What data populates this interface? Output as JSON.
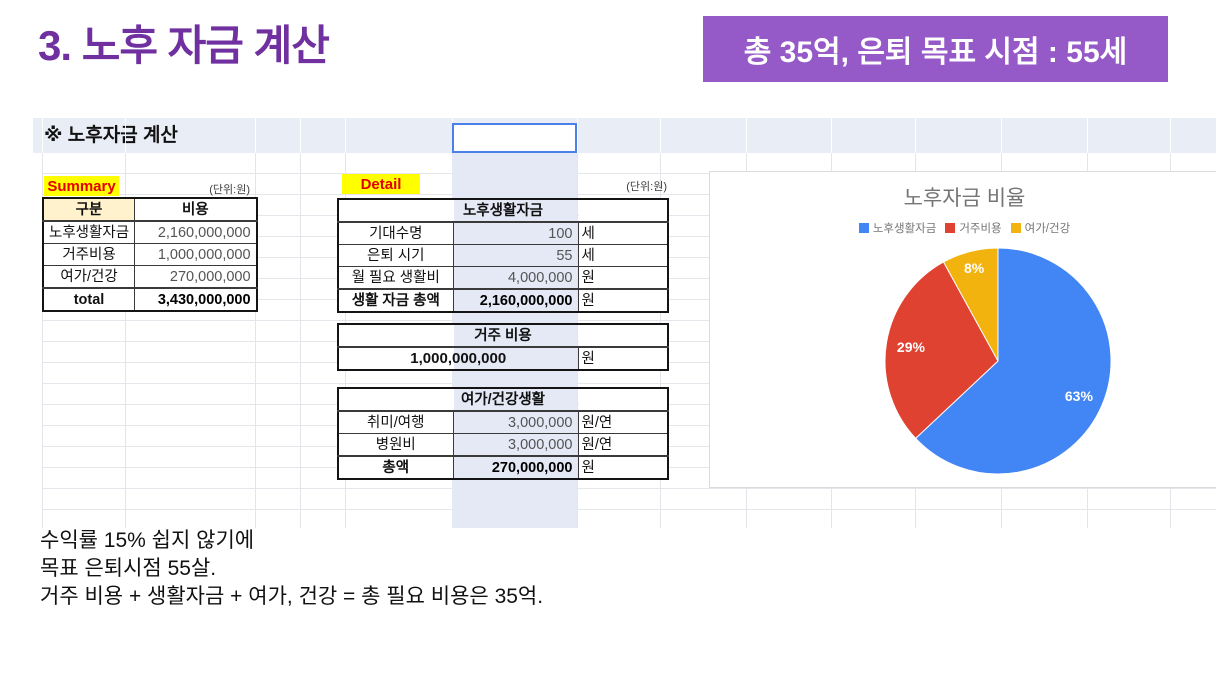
{
  "slide": {
    "title": "3. 노후 자금 계산",
    "badge": "총 35억, 은퇴 목표 시점  : 55세",
    "notes": [
      "수익률 15% 쉽지 않기에",
      "목표 은퇴시점 55살.",
      "거주 비용 + 생활자금 + 여가, 건강 = 총 필요 비용은 35억."
    ]
  },
  "sheet": {
    "header": "※ 노후자금 계산",
    "unit_label": "(단위:원)",
    "selected_cell_value": "",
    "summary": {
      "chip": "Summary",
      "columns": [
        "구분",
        "비용"
      ],
      "rows": [
        [
          "노후생활자금",
          "2,160,000,000"
        ],
        [
          "거주비용",
          "1,000,000,000"
        ],
        [
          "여가/건강",
          "270,000,000"
        ]
      ],
      "total": [
        "total",
        "3,430,000,000"
      ]
    },
    "detail": {
      "chip": "Detail",
      "life": {
        "title": "노후생활자금",
        "rows": [
          [
            "기대수명",
            "100",
            "세"
          ],
          [
            "은퇴 시기",
            "55",
            "세"
          ],
          [
            "월 필요 생활비",
            "4,000,000",
            "원"
          ]
        ],
        "total": [
          "생활 자금 총액",
          "2,160,000,000",
          "원"
        ]
      },
      "housing": {
        "title": "거주 비용",
        "value": "1,000,000,000",
        "unit": "원"
      },
      "leisure": {
        "title": "여가/건강생활",
        "rows": [
          [
            "취미/여행",
            "3,000,000",
            "원/연"
          ],
          [
            "병원비",
            "3,000,000",
            "원/연"
          ]
        ],
        "total": [
          "총액",
          "270,000,000",
          "원"
        ]
      }
    }
  },
  "chart_data": {
    "type": "pie",
    "title": "노후자금 비율",
    "labels": [
      "노후생활자금",
      "거주비용",
      "여가/건강"
    ],
    "values": [
      63,
      29,
      8
    ],
    "value_labels": [
      "63%",
      "29%",
      "8%"
    ],
    "colors": [
      "#4285F4",
      "#E04231",
      "#F2B30E"
    ],
    "legend_position": "top",
    "start_angle_deg": 0,
    "direction": "clockwise"
  },
  "colors": {
    "title_purple": "#7030A0",
    "badge_purple": "#9559C8",
    "band_blue": "#E9EDF6",
    "column_highlight": "#E5E9F6",
    "chip_yellow": "#FFFF00",
    "chip_text_red": "#E30000",
    "header_cream": "#FFF2CC",
    "selection_blue": "#4A80E8"
  }
}
